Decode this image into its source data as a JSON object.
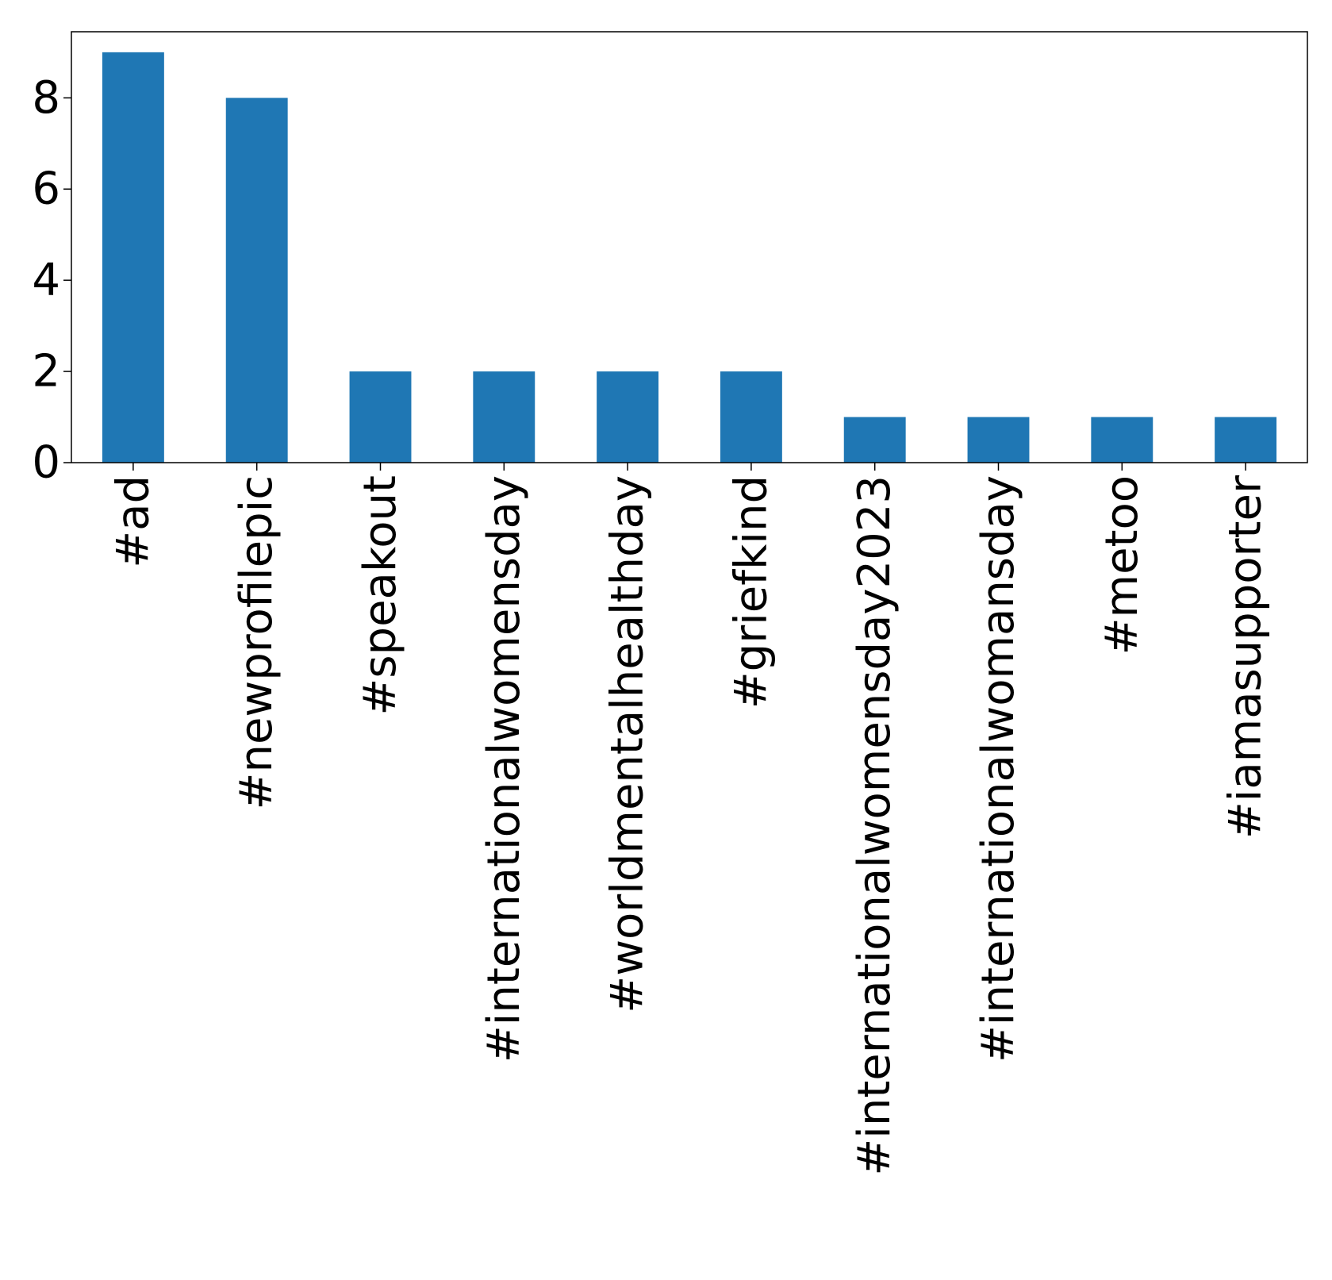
{
  "chart_data": {
    "type": "bar",
    "categories": [
      "#ad",
      "#newprofilepic",
      "#speakout",
      "#internationalwomensday",
      "#worldmentalhealthday",
      "#griefkind",
      "#internationalwomensday2023",
      "#internationalwomansday",
      "#metoo",
      "#iamasupporter"
    ],
    "values": [
      9,
      8,
      2,
      2,
      2,
      2,
      1,
      1,
      1,
      1
    ],
    "yticks": [
      0,
      2,
      4,
      6,
      8
    ],
    "ylim": [
      0,
      9.45
    ],
    "bar_color": "#1f77b4",
    "grid": false,
    "legend": false,
    "title": "",
    "xlabel": "",
    "ylabel": ""
  }
}
